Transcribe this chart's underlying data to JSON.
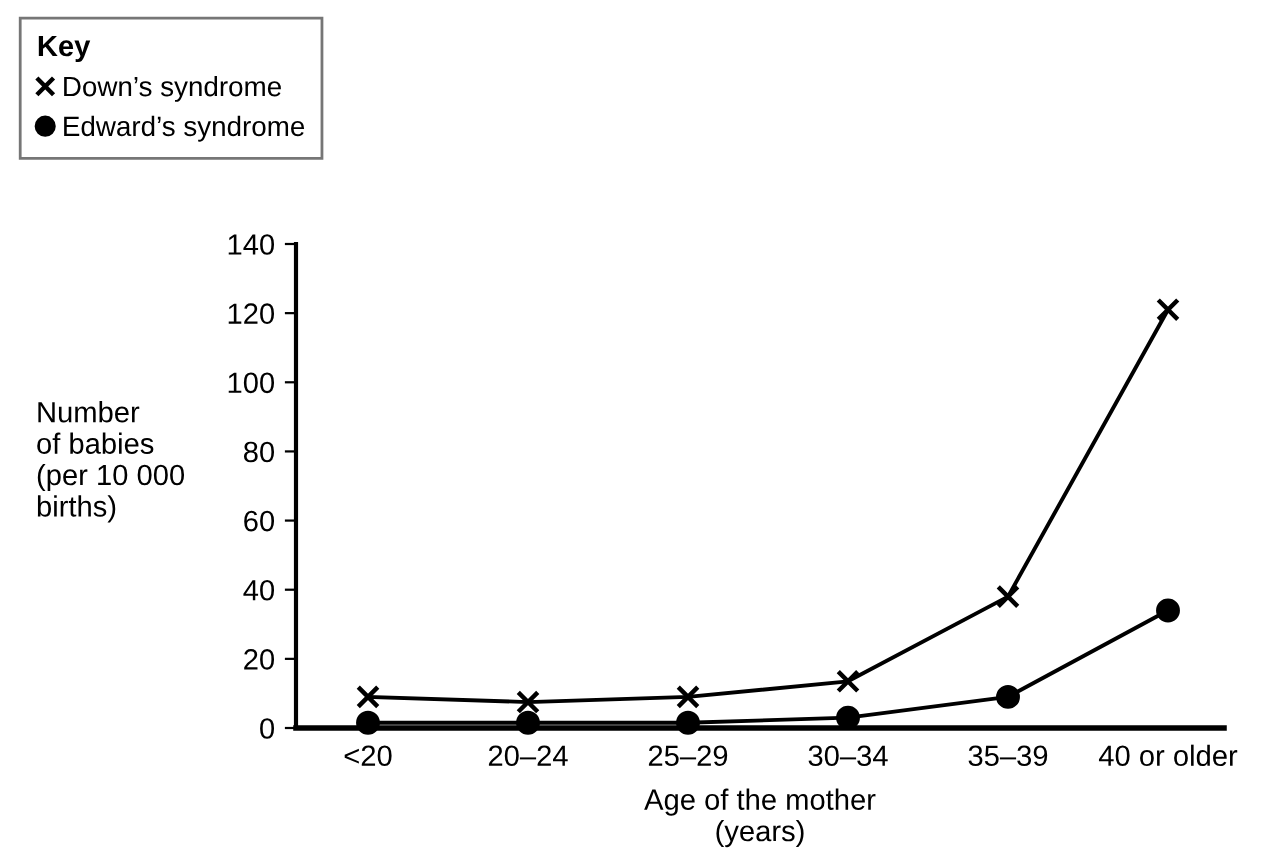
{
  "chart_data": {
    "type": "line",
    "xlabel": "Age of the mother\n(years)",
    "ylabel": "Number\nof babies\n(per 10 000\nbirths)",
    "legend_title": "Key",
    "categories": [
      "<20",
      "20–24",
      "25–29",
      "30–34",
      "35–39",
      "40 or older"
    ],
    "series": [
      {
        "name": "Down’s syndrome",
        "color": "#000000",
        "marker": "cross",
        "values": [
          9,
          7.5,
          9,
          13.5,
          38,
          121
        ]
      },
      {
        "name": "Edward’s syndrome",
        "color": "#000000",
        "marker": "circle",
        "values": [
          1.5,
          1.5,
          1.5,
          3,
          9,
          34
        ]
      }
    ],
    "ylim": [
      0,
      140
    ],
    "yticks": [
      0,
      20,
      40,
      60,
      80,
      100,
      120,
      140
    ],
    "grid": false,
    "legend": "top left",
    "line_style": "solid"
  }
}
